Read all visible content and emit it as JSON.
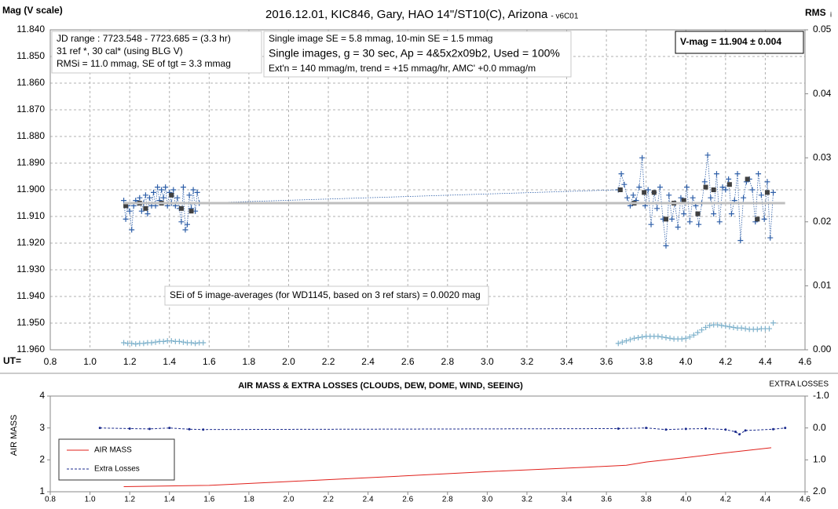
{
  "chart_data": [
    {
      "type": "line",
      "title": "2016.12.01,  KIC846, Gary, HAO 14\"/ST10(C), Arizona",
      "subtitle": "- v6C01",
      "y_label": "Mag (V scale)",
      "y2_label": "RMS",
      "y2_label_sub": "i",
      "x_label": "UT=",
      "xlim": [
        0.8,
        4.6
      ],
      "xticks": [
        0.8,
        {
          "value": 1,
          "label": "1.0"
        },
        1.2,
        1.4,
        1.6,
        1.8,
        {
          "value": 2,
          "label": "2.0"
        },
        2.2,
        2.4,
        2.6,
        2.8,
        {
          "value": 3,
          "label": "3.0"
        },
        3.2,
        3.4,
        3.6,
        3.8,
        {
          "value": 4,
          "label": "4.0"
        },
        4.2,
        4.4,
        4.6
      ],
      "ylim": [
        11.96,
        11.84
      ],
      "yticks": [
        {
          "value": 11.84,
          "label": "11.840"
        },
        {
          "value": 11.85,
          "label": "11.850"
        },
        {
          "value": 11.86,
          "label": "11.860"
        },
        {
          "value": 11.87,
          "label": "11.870"
        },
        {
          "value": 11.88,
          "label": "11.880"
        },
        {
          "value": 11.89,
          "label": "11.890"
        },
        {
          "value": 11.9,
          "label": "11.900"
        },
        {
          "value": 11.91,
          "label": "11.910"
        },
        {
          "value": 11.92,
          "label": "11.920"
        },
        {
          "value": 11.93,
          "label": "11.930"
        },
        {
          "value": 11.94,
          "label": "11.940"
        },
        {
          "value": 11.95,
          "label": "11.950"
        },
        {
          "value": 11.96,
          "label": "11.960"
        }
      ],
      "y2lim": [
        0,
        0.05
      ],
      "y2ticks": [
        {
          "value": 0,
          "label": "0.00"
        },
        0.01,
        0.02,
        0.03,
        0.04,
        0.05
      ],
      "grid": true,
      "text_boxes": [
        {
          "lines": [
            "JD range  : 7723.548 - 7723.685  = (3.3 hr)",
            "31 ref *, 30 cal* (using BLG V)",
            "RMSi = 11.0 mmag, SE of tgt = 3.3 mmag"
          ]
        },
        {
          "lines": [
            "Single image SE = 5.8 mmag, 10-min SE = 1.5 mmag",
            "Single images, g = 30 sec, Ap = 4&5x2x09b2, Used = 100%",
            "Ext'n = 140 mmag/m, trend = +15 mmag/hr, AMC' +0.0 mmag/m"
          ]
        },
        {
          "lines": [
            "V-mag = 11.904 ± 0.004"
          ]
        },
        {
          "lines": [
            "SEi of 5 image-averages (for WD1145, based on 3 ref stars) = 0.0020 mag"
          ]
        }
      ],
      "series": [
        {
          "color": "#2e5fa8",
          "line": "dotted",
          "marker": "cross",
          "x": [
            1.17,
            1.18,
            1.19,
            1.2,
            1.21,
            1.22,
            1.23,
            1.24,
            1.25,
            1.26,
            1.27,
            1.28,
            1.29,
            1.3,
            1.31,
            1.32,
            1.33,
            1.34,
            1.35,
            1.36,
            1.37,
            1.38,
            1.39,
            1.4,
            1.41,
            1.42,
            1.43,
            1.44,
            1.45,
            1.46,
            1.47,
            1.48,
            1.49,
            1.5,
            1.51,
            1.52,
            1.53,
            1.54,
            1.55,
            3.66,
            3.675,
            3.69,
            3.705,
            3.72,
            3.735,
            3.75,
            3.765,
            3.78,
            3.795,
            3.81,
            3.825,
            3.84,
            3.855,
            3.87,
            3.885,
            3.9,
            3.915,
            3.93,
            3.945,
            3.96,
            3.975,
            3.99,
            4.005,
            4.02,
            4.035,
            4.05,
            4.065,
            4.08,
            4.095,
            4.11,
            4.125,
            4.14,
            4.155,
            4.17,
            4.185,
            4.2,
            4.215,
            4.23,
            4.245,
            4.26,
            4.275,
            4.29,
            4.305,
            4.32,
            4.335,
            4.35,
            4.365,
            4.38,
            4.395,
            4.41,
            4.425,
            4.44
          ],
          "values": [
            11.904,
            11.911,
            11.906,
            11.908,
            11.915,
            11.906,
            11.904,
            11.905,
            11.903,
            11.908,
            11.905,
            11.902,
            11.909,
            11.903,
            11.906,
            11.901,
            11.906,
            11.899,
            11.904,
            11.9,
            11.903,
            11.899,
            11.906,
            11.901,
            11.905,
            11.9,
            11.906,
            11.903,
            11.907,
            11.912,
            11.899,
            11.915,
            11.913,
            11.902,
            11.907,
            11.9,
            11.908,
            11.901,
            11.905,
            11.9,
            11.894,
            11.898,
            11.903,
            11.906,
            11.902,
            11.904,
            11.899,
            11.888,
            11.906,
            11.9,
            11.913,
            11.901,
            11.907,
            11.899,
            11.911,
            11.921,
            11.902,
            11.911,
            11.905,
            11.914,
            11.903,
            11.909,
            11.899,
            11.912,
            11.903,
            11.906,
            11.913,
            11.905,
            11.897,
            11.887,
            11.903,
            11.909,
            11.894,
            11.912,
            11.899,
            11.9,
            11.896,
            11.909,
            11.904,
            11.894,
            11.919,
            11.903,
            11.897,
            11.896,
            11.9,
            11.912,
            11.894,
            11.902,
            11.911,
            11.897,
            11.918,
            11.901
          ]
        },
        {
          "color": "#404040",
          "marker": "square",
          "x": [
            1.18,
            1.25,
            1.28,
            1.36,
            1.41,
            1.46,
            1.51,
            3.67,
            3.74,
            3.79,
            3.84,
            3.9,
            3.94,
            3.99,
            4.06,
            4.1,
            4.14,
            4.22,
            4.31,
            4.36,
            4.41
          ],
          "values": [
            11.906,
            11.905,
            11.907,
            11.905,
            11.902,
            11.907,
            11.908,
            11.9,
            11.905,
            11.901,
            11.901,
            11.911,
            11.905,
            11.904,
            11.909,
            11.899,
            11.9,
            11.898,
            11.896,
            11.911,
            11.901
          ]
        },
        {
          "color": "#bfbfbf",
          "line": "solid",
          "width": 3,
          "x": [
            1.17,
            4.5
          ],
          "values": [
            11.905,
            11.905
          ]
        },
        {
          "color": "#7fb2cc",
          "marker": "cross",
          "axis": "y2",
          "x": [
            1.17,
            1.19,
            1.21,
            1.23,
            1.25,
            1.27,
            1.29,
            1.31,
            1.33,
            1.35,
            1.37,
            1.39,
            1.41,
            1.43,
            1.45,
            1.47,
            1.49,
            1.51,
            1.53,
            1.55,
            1.57,
            3.66,
            3.68,
            3.7,
            3.72,
            3.74,
            3.76,
            3.78,
            3.8,
            3.82,
            3.84,
            3.86,
            3.88,
            3.9,
            3.92,
            3.94,
            3.96,
            3.98,
            4,
            4.02,
            4.04,
            4.06,
            4.08,
            4.1,
            4.12,
            4.14,
            4.16,
            4.18,
            4.2,
            4.22,
            4.24,
            4.26,
            4.28,
            4.3,
            4.32,
            4.34,
            4.36,
            4.38,
            4.4,
            4.42,
            4.44
          ],
          "values": [
            0.0011,
            0.001,
            0.001,
            0.0009,
            0.001,
            0.001,
            0.0011,
            0.0011,
            0.0012,
            0.0013,
            0.0013,
            0.0014,
            0.0014,
            0.0013,
            0.0013,
            0.0012,
            0.0011,
            0.0011,
            0.001,
            0.0011,
            0.0011,
            0.001,
            0.0012,
            0.0014,
            0.0016,
            0.0018,
            0.0019,
            0.002,
            0.0021,
            0.0021,
            0.0021,
            0.0021,
            0.002,
            0.0019,
            0.0018,
            0.0017,
            0.0017,
            0.0017,
            0.0018,
            0.002,
            0.0023,
            0.0027,
            0.0031,
            0.0035,
            0.0038,
            0.0039,
            0.0039,
            0.0038,
            0.0037,
            0.0036,
            0.0035,
            0.0034,
            0.0034,
            0.0033,
            0.0032,
            0.0032,
            0.0032,
            0.0033,
            0.0033,
            0.0033,
            0.0042
          ]
        }
      ]
    },
    {
      "type": "line",
      "title": "AIR MASS & EXTRA LOSSES (CLOUDS, DEW, DOME, WIND, SEEING)",
      "y_label": "AIR MASS",
      "y2_label": "EXTRA LOSSES",
      "xlim": [
        0.8,
        4.6
      ],
      "xticks": [
        0.8,
        {
          "value": 1,
          "label": "1.0"
        },
        1.2,
        1.4,
        1.6,
        1.8,
        {
          "value": 2,
          "label": "2.0"
        },
        2.2,
        2.4,
        2.6,
        2.8,
        {
          "value": 3,
          "label": "3.0"
        },
        3.2,
        3.4,
        3.6,
        3.8,
        {
          "value": 4,
          "label": "4.0"
        },
        4.2,
        4.4,
        4.6
      ],
      "ylim": [
        1,
        4
      ],
      "yticks": [
        1,
        2,
        3,
        4
      ],
      "y2lim": [
        2,
        -1
      ],
      "y2ticks": [
        {
          "value": -1,
          "label": "-1.0"
        },
        {
          "value": 0,
          "label": "0.0"
        },
        {
          "value": 1,
          "label": "1.0"
        },
        {
          "value": 2,
          "label": "2.0"
        }
      ],
      "grid": false,
      "legend": "lower-left",
      "series": [
        {
          "name": "AIR MASS",
          "color": "#e0201b",
          "line": "solid",
          "x": [
            1.17,
            1.6,
            2,
            2.5,
            3,
            3.5,
            3.7,
            3.8,
            4,
            4.2,
            4.43
          ],
          "values": [
            1.16,
            1.2,
            1.32,
            1.47,
            1.63,
            1.77,
            1.83,
            1.93,
            2.07,
            2.22,
            2.38
          ]
        },
        {
          "name": "Extra Losses",
          "color": "#1a2a8c",
          "line": "dashed",
          "marker": "dot",
          "axis": "y2",
          "x": [
            1.05,
            1.2,
            1.3,
            1.4,
            1.5,
            1.57,
            3.66,
            3.8,
            3.9,
            4,
            4.1,
            4.2,
            4.25,
            4.27,
            4.3,
            4.44,
            4.5
          ],
          "values": [
            0,
            0.02,
            0.03,
            0,
            0.04,
            0.05,
            0.02,
            0,
            0.05,
            0.03,
            0.02,
            0.05,
            0.12,
            0.2,
            0.08,
            0.04,
            0
          ]
        }
      ]
    }
  ]
}
